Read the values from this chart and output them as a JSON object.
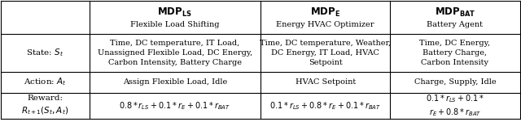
{
  "col_headers": [
    "MDP$_{LS}$\nFlexible Load Shifting",
    "MDP$_E$\nEnergy HVAC Optimizer",
    "MDP$_{BAT}$\nBattery Agent"
  ],
  "col_header_bold": [
    "MDP",
    "LS",
    "E",
    "BAT"
  ],
  "row_labels": [
    "State: $S_t$",
    "Action: $A_t$",
    "Reward:\n$R_{t+1}(S_t, A_t)$"
  ],
  "cells": [
    [
      "Time, DC temperature, IT Load,\nUnassigned Flexible Load, DC Energy,\nCarbon Intensity, Battery Charge",
      "Time, DC temperature, Weather,\nDC Energy, IT Load, HVAC\nSetpoint",
      "Time, DC Energy,\nBattery Charge,\nCarbon Intensity"
    ],
    [
      "Assign Flexible Load, Idle",
      "HVAC Setpoint",
      "Charge, Supply, Idle"
    ],
    [
      "$0.8 * r_{LS} + 0.1 * r_E + 0.1 * r_{BAT}$",
      "$0.1 * r_{LS} + 0.8 * r_E + 0.1 * r_{BAT}$",
      "$0.1 * r_{LS} + 0.1 *$\n$r_E + 0.8 * r_{BAT}$"
    ]
  ],
  "background_color": "#ffffff",
  "header_bg": "#ffffff",
  "line_color": "#000000",
  "font_size": 7.5,
  "header_font_size": 8.5
}
